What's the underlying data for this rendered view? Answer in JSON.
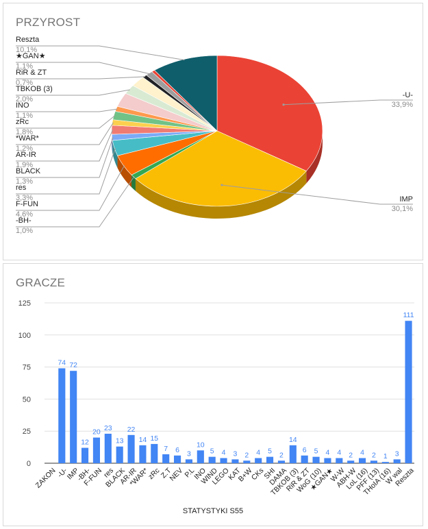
{
  "chart_data": [
    {
      "type": "pie",
      "title": "PRZYROST",
      "slices": [
        {
          "label": "-U-",
          "value": 33.9,
          "pct": "33,9%",
          "color": "#ea4335"
        },
        {
          "label": "IMP",
          "value": 30.1,
          "pct": "30,1%",
          "color": "#fbbc04"
        },
        {
          "label": "-BH-",
          "value": 1.0,
          "pct": "1,0%",
          "color": "#34a853"
        },
        {
          "label": "F-FUN",
          "value": 4.6,
          "pct": "4,6%",
          "color": "#ff6d01"
        },
        {
          "label": "res",
          "value": 3.3,
          "pct": "3,3%",
          "color": "#46bdc6"
        },
        {
          "label": "BLACK",
          "value": 1.3,
          "pct": "1,3%",
          "color": "#7baaf7"
        },
        {
          "label": "AR-IR",
          "value": 1.9,
          "pct": "1,9%",
          "color": "#f07b72"
        },
        {
          "label": "*WAR*",
          "value": 1.2,
          "pct": "1,2%",
          "color": "#fcd04f"
        },
        {
          "label": "zRc",
          "value": 1.8,
          "pct": "1,8%",
          "color": "#71c287"
        },
        {
          "label": "INO",
          "value": 1.1,
          "pct": "1,1%",
          "color": "#ff994d"
        },
        {
          "label": "",
          "value": 3.0,
          "pct": "",
          "color": "#f4cccc"
        },
        {
          "label": "TBKOB (3)",
          "value": 2.0,
          "pct": "2,0%",
          "color": "#d9ead3"
        },
        {
          "label": "",
          "value": 2.3,
          "pct": "",
          "color": "#fff2cc"
        },
        {
          "label": "RiR & ZT",
          "value": 0.7,
          "pct": "0,7%",
          "color": "#202124"
        },
        {
          "label": "★GAN★",
          "value": 1.1,
          "pct": "1,1%",
          "color": "#9e9e9e"
        },
        {
          "label": "",
          "value": 0.5,
          "pct": "",
          "color": "#ea4335"
        },
        {
          "label": "Reszta",
          "value": 10.1,
          "pct": "10,1%",
          "color": "#0f5e6b"
        }
      ]
    },
    {
      "type": "bar",
      "title": "GRACZE",
      "xlabel": "STATYSTYKI S55",
      "ylim": [
        0,
        125
      ],
      "yticks": [
        0,
        25,
        50,
        75,
        100,
        125
      ],
      "color": "#4285f4",
      "categories": [
        "ZAKON",
        "-U-",
        "IMP",
        "-BH-",
        "F-FUN",
        "res",
        "BLACK",
        "AR-IR",
        "*WAR*",
        "zRc",
        "Z.T",
        "NEV",
        "P.L",
        "INO",
        "WIND",
        "LEGO",
        "KAT",
        "B+W",
        "CKs",
        "SHI",
        "DAMA",
        "TBKOB (3)",
        "RiR & ZT",
        "WoG (10)",
        "★GAN★",
        "W-W",
        "ABH-W",
        "LoL (16)",
        "PFF (13)",
        "THoIA (16)",
        "W wal",
        "Reszta"
      ],
      "values": [
        null,
        74,
        72,
        12,
        20,
        23,
        13,
        22,
        14,
        15,
        7,
        6,
        3,
        10,
        5,
        4,
        3,
        2,
        4,
        5,
        2,
        14,
        6,
        5,
        4,
        4,
        2,
        4,
        2,
        1,
        3,
        111
      ]
    }
  ]
}
